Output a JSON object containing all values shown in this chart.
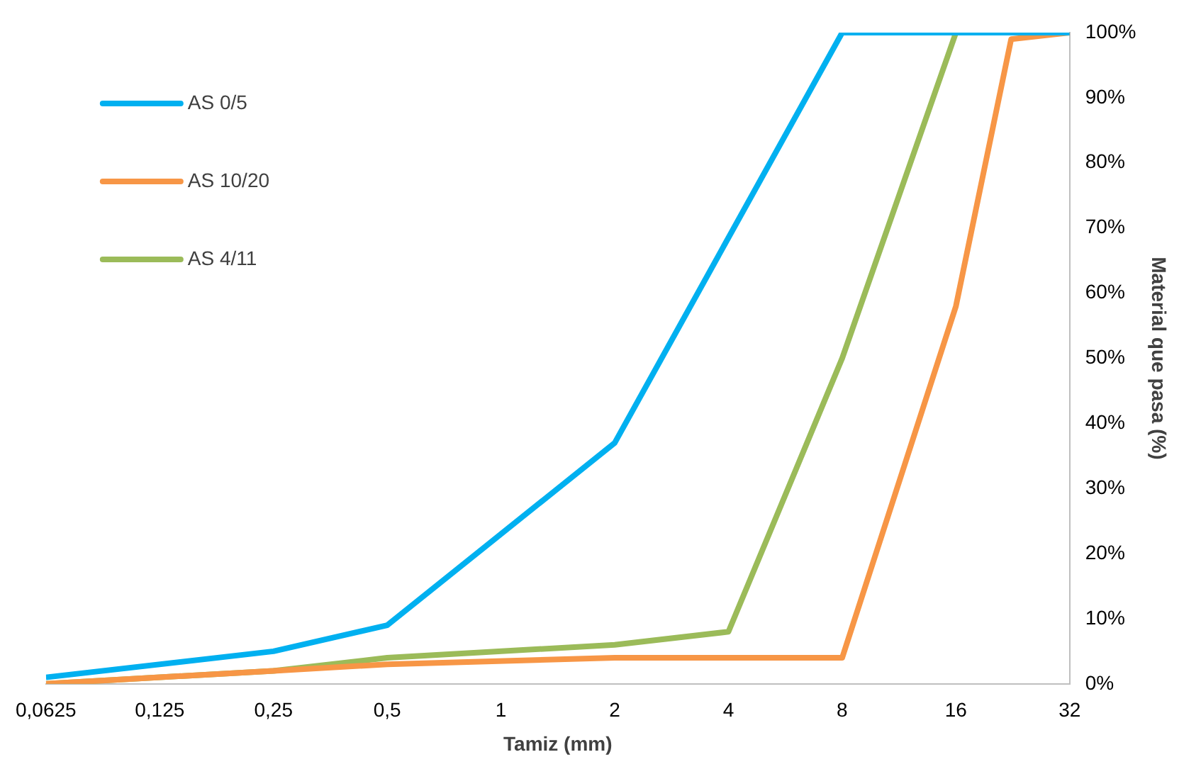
{
  "chart_data": {
    "type": "line",
    "xlabel": "Tamiz (mm)",
    "ylabel": "Material que pasa (%)",
    "log": "x",
    "grid": false,
    "legend": "top left",
    "marker": "none",
    "line_style": "solid",
    "xlim": [
      0.0625,
      32
    ],
    "xticks": [
      {
        "value": 0.0625,
        "label": "0,0625"
      },
      {
        "value": 0.125,
        "label": "0,125"
      },
      {
        "value": 0.25,
        "label": "0,25"
      },
      {
        "value": 0.5,
        "label": "0,5"
      },
      1,
      2,
      4,
      8,
      16,
      32
    ],
    "ylim": [
      0,
      100
    ],
    "yticks": [
      {
        "value": 0,
        "label": "0%"
      },
      {
        "value": 10,
        "label": "10%"
      },
      {
        "value": 20,
        "label": "20%"
      },
      {
        "value": 30,
        "label": "30%"
      },
      {
        "value": 40,
        "label": "40%"
      },
      {
        "value": 50,
        "label": "50%"
      },
      {
        "value": 60,
        "label": "60%"
      },
      {
        "value": 70,
        "label": "70%"
      },
      {
        "value": 80,
        "label": "80%"
      },
      {
        "value": 90,
        "label": "90%"
      },
      {
        "value": 100,
        "label": "100%"
      }
    ],
    "series": [
      {
        "name": "AS 0/5",
        "color": "#00b0f0",
        "x": [
          0.0625,
          0.25,
          0.5,
          2,
          8,
          16,
          32
        ],
        "values": [
          1,
          5,
          9,
          37,
          100,
          100,
          100
        ]
      },
      {
        "name": "AS 10/20",
        "color": "#f79646",
        "x": [
          0.0625,
          0.25,
          0.5,
          2,
          8,
          16,
          22.4,
          32
        ],
        "values": [
          0,
          2,
          3,
          4,
          4,
          58,
          99,
          100
        ]
      },
      {
        "name": "AS 4/11",
        "color": "#9bbb59",
        "x": [
          0.0625,
          0.25,
          0.5,
          2,
          4,
          8,
          16,
          32
        ],
        "values": [
          0,
          2,
          4,
          6,
          8,
          50,
          100,
          100
        ]
      }
    ]
  }
}
